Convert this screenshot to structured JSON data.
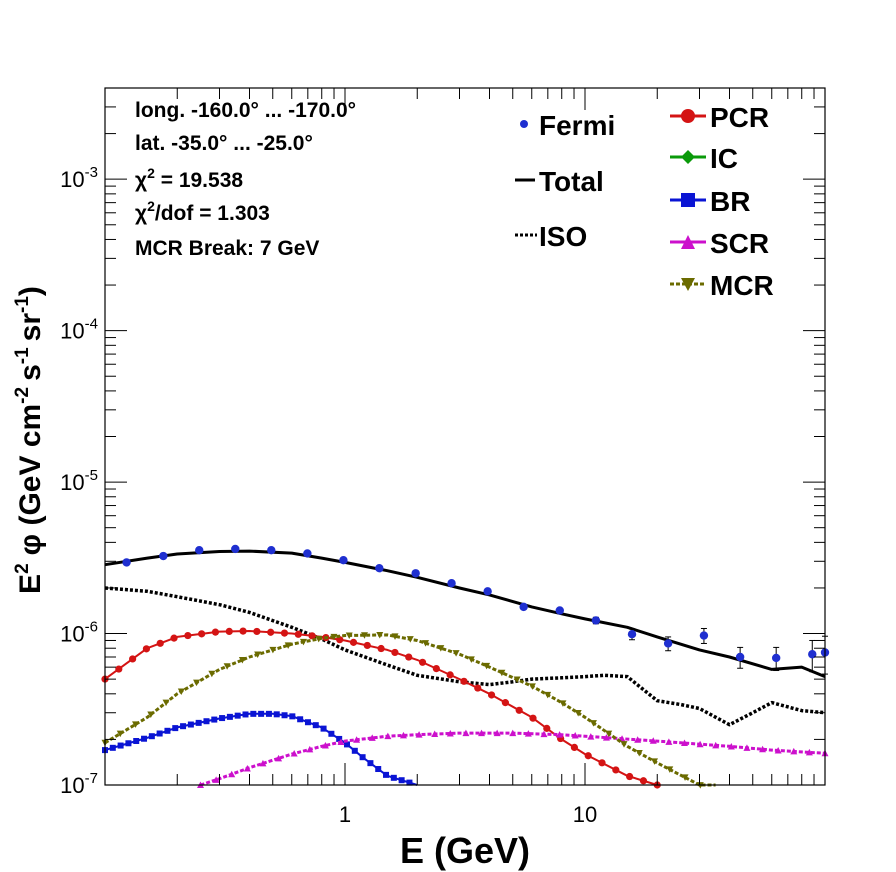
{
  "info": {
    "longitude": "long. -160.0° ... -170.0°",
    "latitude": "lat. -35.0° ... -25.0°",
    "chi2_sym": "χ",
    "chi2_sup": "2",
    "chi2_val": " = 19.538",
    "chi2dof_sym": "χ",
    "chi2dof_sup": "2",
    "chi2dof_val": "/dof = 1.303",
    "mcr_break": "MCR Break:  7 GeV"
  },
  "legend": {
    "fermi": "Fermi",
    "total": "Total",
    "iso": "ISO",
    "pcr": "PCR",
    "ic": "IC",
    "br": "BR",
    "scr": "SCR",
    "mcr": "MCR"
  },
  "colors": {
    "fermi": "#1f2fd0",
    "total": "#000000",
    "iso": "#000000",
    "pcr": "#d41414",
    "ic": "#0a9a0a",
    "br": "#0a14d4",
    "scr": "#cc10cc",
    "mcr": "#6b6b00"
  },
  "chart_data": {
    "type": "scatter",
    "x_scale": "log",
    "y_scale": "log",
    "xlabel": "E (GeV)",
    "ylabel_main": "E",
    "ylabel_sup": "2",
    "ylabel_phi": "φ",
    "ylabel_units": "(GeV cm",
    "ylabel_sup2": "-2",
    "ylabel_s": "s",
    "ylabel_sup3": "-1",
    "ylabel_sr": "sr",
    "ylabel_sup4": "-1",
    "ylabel_close": ")",
    "xlim": [
      0.1,
      100
    ],
    "ylim": [
      1e-07,
      0.004
    ],
    "x_tick_labels": [
      {
        "value": 1,
        "label": "1"
      },
      {
        "value": 10,
        "label": "10"
      }
    ],
    "y_tick_labels": [
      {
        "value": 1e-07,
        "base": "10",
        "exp": "-7"
      },
      {
        "value": 1e-06,
        "base": "10",
        "exp": "-6"
      },
      {
        "value": 1e-05,
        "base": "10",
        "exp": "-5"
      },
      {
        "value": 0.0001,
        "base": "10",
        "exp": "-4"
      },
      {
        "value": 0.001,
        "base": "10",
        "exp": "-3"
      }
    ],
    "fermi": [
      {
        "x": 0.123,
        "y": 2.95e-06,
        "err": 0
      },
      {
        "x": 0.175,
        "y": 3.25e-06,
        "err": 0
      },
      {
        "x": 0.247,
        "y": 3.55e-06,
        "err": 0
      },
      {
        "x": 0.349,
        "y": 3.62e-06,
        "err": 0
      },
      {
        "x": 0.493,
        "y": 3.55e-06,
        "err": 0
      },
      {
        "x": 0.697,
        "y": 3.38e-06,
        "err": 0
      },
      {
        "x": 0.985,
        "y": 3.05e-06,
        "err": 0
      },
      {
        "x": 1.39,
        "y": 2.7e-06,
        "err": 0
      },
      {
        "x": 1.97,
        "y": 2.5e-06,
        "err": 0
      },
      {
        "x": 2.78,
        "y": 2.15e-06,
        "err": 0
      },
      {
        "x": 3.93,
        "y": 1.9e-06,
        "err": 0
      },
      {
        "x": 5.55,
        "y": 1.5e-06,
        "err": 0
      },
      {
        "x": 7.85,
        "y": 1.42e-06,
        "err": 0
      },
      {
        "x": 11.1,
        "y": 1.22e-06,
        "err": 6e-08
      },
      {
        "x": 15.7,
        "y": 9.9e-07,
        "err": 8e-08
      },
      {
        "x": 22.2,
        "y": 8.6e-07,
        "err": 9e-08
      },
      {
        "x": 31.3,
        "y": 9.7e-07,
        "err": 1.1e-07
      },
      {
        "x": 44.3,
        "y": 7e-07,
        "err": 1.1e-07
      },
      {
        "x": 62.6,
        "y": 6.9e-07,
        "err": 1.2e-07
      },
      {
        "x": 88.5,
        "y": 7.3e-07,
        "err": 1.7e-07
      },
      {
        "x": 125.0,
        "y": 7.5e-07,
        "err": 2.1e-07
      }
    ],
    "series": [
      {
        "key": "total",
        "name": "Total",
        "x": [
          0.1,
          0.15,
          0.2,
          0.3,
          0.4,
          0.6,
          0.8,
          1.0,
          1.5,
          2.0,
          3.0,
          4.0,
          6.0,
          8.0,
          10,
          15,
          20,
          30,
          40,
          60,
          80,
          100
        ],
        "y": [
          2.85e-06,
          3.15e-06,
          3.35e-06,
          3.48e-06,
          3.5e-06,
          3.4e-06,
          3.15e-06,
          2.95e-06,
          2.6e-06,
          2.35e-06,
          2e-06,
          1.8e-06,
          1.5e-06,
          1.35e-06,
          1.25e-06,
          1.1e-06,
          9.5e-07,
          7.8e-07,
          7e-07,
          5.8e-07,
          6e-07,
          5.2e-07
        ]
      },
      {
        "key": "iso",
        "name": "ISO",
        "x": [
          0.1,
          0.15,
          0.2,
          0.3,
          0.4,
          0.6,
          0.8,
          1.0,
          1.5,
          2.0,
          3.0,
          4.0,
          5.0,
          6.0,
          8.0,
          10,
          12,
          15,
          20,
          25,
          30,
          40,
          50,
          60,
          80,
          100
        ],
        "y": [
          2e-06,
          1.9e-06,
          1.75e-06,
          1.55e-06,
          1.38e-06,
          1.1e-06,
          9.2e-07,
          7.8e-07,
          6.2e-07,
          5.3e-07,
          4.8e-07,
          4.6e-07,
          4.8e-07,
          5e-07,
          5.1e-07,
          5.2e-07,
          5.3e-07,
          5.2e-07,
          3.6e-07,
          3.4e-07,
          3.2e-07,
          2.5e-07,
          3e-07,
          3.5e-07,
          3.1e-07,
          3e-07
        ]
      },
      {
        "key": "pcr",
        "name": "PCR",
        "x": [
          0.1,
          0.15,
          0.2,
          0.3,
          0.4,
          0.6,
          0.8,
          1.0,
          1.5,
          2.0,
          3.0,
          4.0,
          6.0,
          8.0,
          10,
          15,
          20
        ],
        "y": [
          5e-07,
          8e-07,
          9.5e-07,
          1.03e-06,
          1.04e-06,
          1e-06,
          9.5e-07,
          9e-07,
          7.8e-07,
          6.7e-07,
          5e-07,
          4e-07,
          2.8e-07,
          2e-07,
          1.6e-07,
          1.15e-07,
          1e-07
        ]
      },
      {
        "key": "br",
        "name": "BR",
        "x": [
          0.1,
          0.15,
          0.2,
          0.3,
          0.4,
          0.5,
          0.6,
          0.8,
          1.0,
          1.2,
          1.5,
          2.0
        ],
        "y": [
          1.7e-07,
          2.05e-07,
          2.4e-07,
          2.75e-07,
          2.95e-07,
          2.95e-07,
          2.85e-07,
          2.4e-07,
          1.9e-07,
          1.5e-07,
          1.15e-07,
          1e-07
        ]
      },
      {
        "key": "scr",
        "name": "SCR",
        "x": [
          0.25,
          0.3,
          0.4,
          0.6,
          0.8,
          1.0,
          1.5,
          2.0,
          3.0,
          5.0,
          8.0,
          10,
          20,
          40,
          60,
          100
        ],
        "y": [
          1e-07,
          1.1e-07,
          1.3e-07,
          1.6e-07,
          1.8e-07,
          1.95e-07,
          2.1e-07,
          2.15e-07,
          2.2e-07,
          2.2e-07,
          2.15e-07,
          2.1e-07,
          1.95e-07,
          1.8e-07,
          1.7e-07,
          1.62e-07
        ]
      },
      {
        "key": "mcr",
        "name": "MCR",
        "x": [
          0.1,
          0.15,
          0.2,
          0.3,
          0.4,
          0.6,
          0.8,
          1.0,
          1.5,
          2.0,
          3.0,
          4.0,
          6.0,
          8.0,
          10,
          15,
          20,
          30,
          35
        ],
        "y": [
          1.9e-07,
          2.8e-07,
          4e-07,
          5.8e-07,
          7e-07,
          8.5e-07,
          9.3e-07,
          9.7e-07,
          9.8e-07,
          9e-07,
          7.3e-07,
          6e-07,
          4.5e-07,
          3.5e-07,
          2.8e-07,
          1.8e-07,
          1.4e-07,
          1e-07,
          9.5e-08
        ]
      }
    ]
  }
}
